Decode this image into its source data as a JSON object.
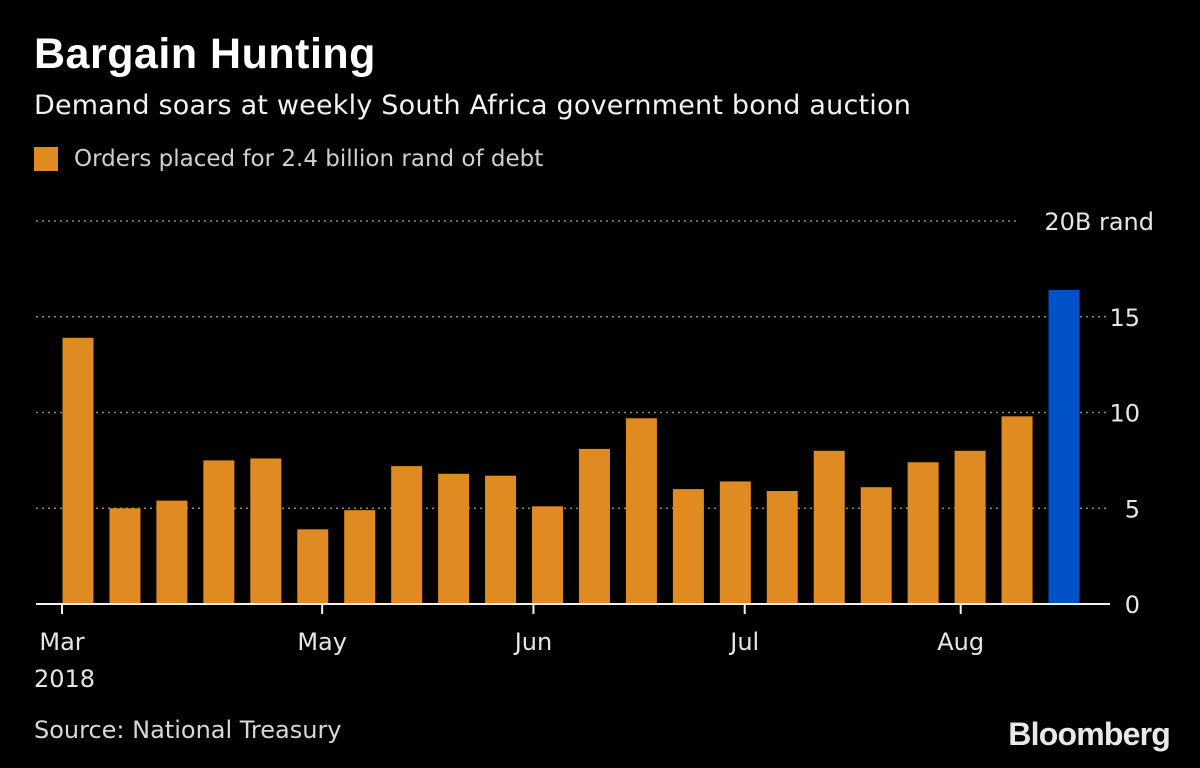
{
  "title": "Bargain Hunting",
  "subtitle": "Demand soars at weekly South Africa government bond auction",
  "legend": {
    "label": "Orders placed for 2.4 billion rand of debt",
    "color": "#e08a22"
  },
  "source": "Source: National Treasury",
  "brand": "Bloomberg",
  "chart_data": {
    "type": "bar",
    "title": "Bargain Hunting",
    "subtitle": "Demand soars at weekly South Africa government bond auction",
    "ylim": [
      0,
      20
    ],
    "yticks": [
      0,
      5,
      10,
      15,
      20
    ],
    "ytick_labels": [
      "0",
      "5",
      "10",
      "15",
      "20B rand"
    ],
    "y_axis_side": "right",
    "grid": true,
    "x_tick_labels": [
      {
        "label": "Mar",
        "bar_index": 0
      },
      {
        "label": "May",
        "bar_index": 5.2
      },
      {
        "label": "Jun",
        "bar_index": 9.7
      },
      {
        "label": "Jul",
        "bar_index": 14.2
      },
      {
        "label": "Aug",
        "bar_index": 18.8
      }
    ],
    "year_label": "2018",
    "series": [
      {
        "name": "Orders placed for 2.4 billion rand of debt",
        "values": [
          13.9,
          5.0,
          5.4,
          7.5,
          7.6,
          3.9,
          4.9,
          7.2,
          6.8,
          6.7,
          5.1,
          8.1,
          9.7,
          6.0,
          6.4,
          5.9,
          8.0,
          6.1,
          7.4,
          8.0,
          9.8,
          16.4
        ],
        "highlight_index": 21,
        "color": "#e08a22",
        "highlight_color": "#0050c8"
      }
    ]
  }
}
